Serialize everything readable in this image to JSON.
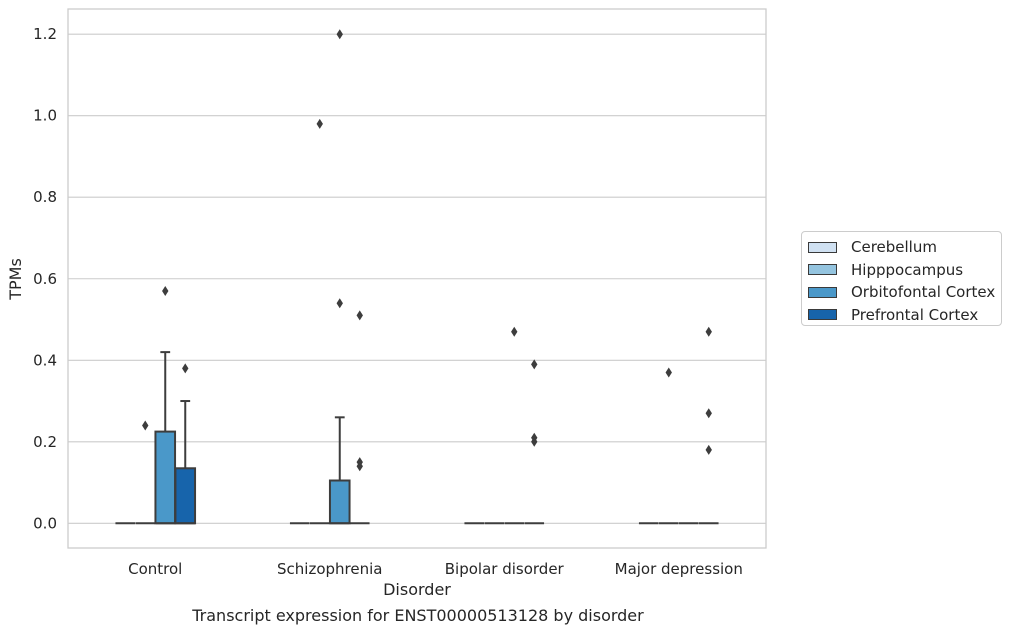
{
  "chart_data": {
    "type": "box",
    "caption": "Transcript expression for ENST00000513128 by disorder",
    "xlabel": "Disorder",
    "ylabel": "TPMs",
    "ylim": [
      -0.06,
      1.26
    ],
    "yticks": [
      0.0,
      0.2,
      0.4,
      0.6,
      0.8,
      1.0,
      1.2
    ],
    "ytick_labels": [
      "0.0",
      "0.2",
      "0.4",
      "0.6",
      "0.8",
      "1.0",
      "1.2"
    ],
    "grid": "horizontal",
    "legend_position": "right",
    "categories": [
      "Control",
      "Schizophrenia",
      "Bipolar disorder",
      "Major depression"
    ],
    "series": [
      {
        "name": "Cerebellum",
        "color": "#d0e1f2",
        "boxes": [
          {
            "q1": 0,
            "median": 0,
            "q3": 0,
            "whislo": 0,
            "whishi": 0,
            "fliers": []
          },
          {
            "q1": 0,
            "median": 0,
            "q3": 0,
            "whislo": 0,
            "whishi": 0,
            "fliers": []
          },
          {
            "q1": 0,
            "median": 0,
            "q3": 0,
            "whislo": 0,
            "whishi": 0,
            "fliers": []
          },
          {
            "q1": 0,
            "median": 0,
            "q3": 0,
            "whislo": 0,
            "whishi": 0,
            "fliers": []
          }
        ]
      },
      {
        "name": "Hipppocampus",
        "color": "#94c4df",
        "boxes": [
          {
            "q1": 0,
            "median": 0,
            "q3": 0,
            "whislo": 0,
            "whishi": 0,
            "fliers": [
              0.24
            ]
          },
          {
            "q1": 0,
            "median": 0,
            "q3": 0,
            "whislo": 0,
            "whishi": 0,
            "fliers": [
              0.98
            ]
          },
          {
            "q1": 0,
            "median": 0,
            "q3": 0,
            "whislo": 0,
            "whishi": 0,
            "fliers": []
          },
          {
            "q1": 0,
            "median": 0,
            "q3": 0,
            "whislo": 0,
            "whishi": 0,
            "fliers": [
              0.37
            ]
          }
        ]
      },
      {
        "name": "Orbitofontal Cortex",
        "color": "#4a98c9",
        "boxes": [
          {
            "q1": 0,
            "median": 0,
            "q3": 0.225,
            "whislo": 0,
            "whishi": 0.42,
            "fliers": [
              0.57
            ]
          },
          {
            "q1": 0,
            "median": 0,
            "q3": 0.105,
            "whislo": 0,
            "whishi": 0.26,
            "fliers": [
              1.2,
              0.54
            ]
          },
          {
            "q1": 0,
            "median": 0,
            "q3": 0,
            "whislo": 0,
            "whishi": 0,
            "fliers": [
              0.47
            ]
          },
          {
            "q1": 0,
            "median": 0,
            "q3": 0,
            "whislo": 0,
            "whishi": 0,
            "fliers": []
          }
        ]
      },
      {
        "name": "Prefrontal Cortex",
        "color": "#1764ab",
        "boxes": [
          {
            "q1": 0,
            "median": 0,
            "q3": 0.135,
            "whislo": 0,
            "whishi": 0.3,
            "fliers": [
              0.38
            ]
          },
          {
            "q1": 0,
            "median": 0,
            "q3": 0,
            "whislo": 0,
            "whishi": 0,
            "fliers": [
              0.51,
              0.15,
              0.14
            ]
          },
          {
            "q1": 0,
            "median": 0,
            "q3": 0,
            "whislo": 0,
            "whishi": 0,
            "fliers": [
              0.39,
              0.21,
              0.2
            ]
          },
          {
            "q1": 0,
            "median": 0,
            "q3": 0,
            "whislo": 0,
            "whishi": 0,
            "fliers": [
              0.47,
              0.27,
              0.18
            ]
          }
        ]
      }
    ]
  }
}
